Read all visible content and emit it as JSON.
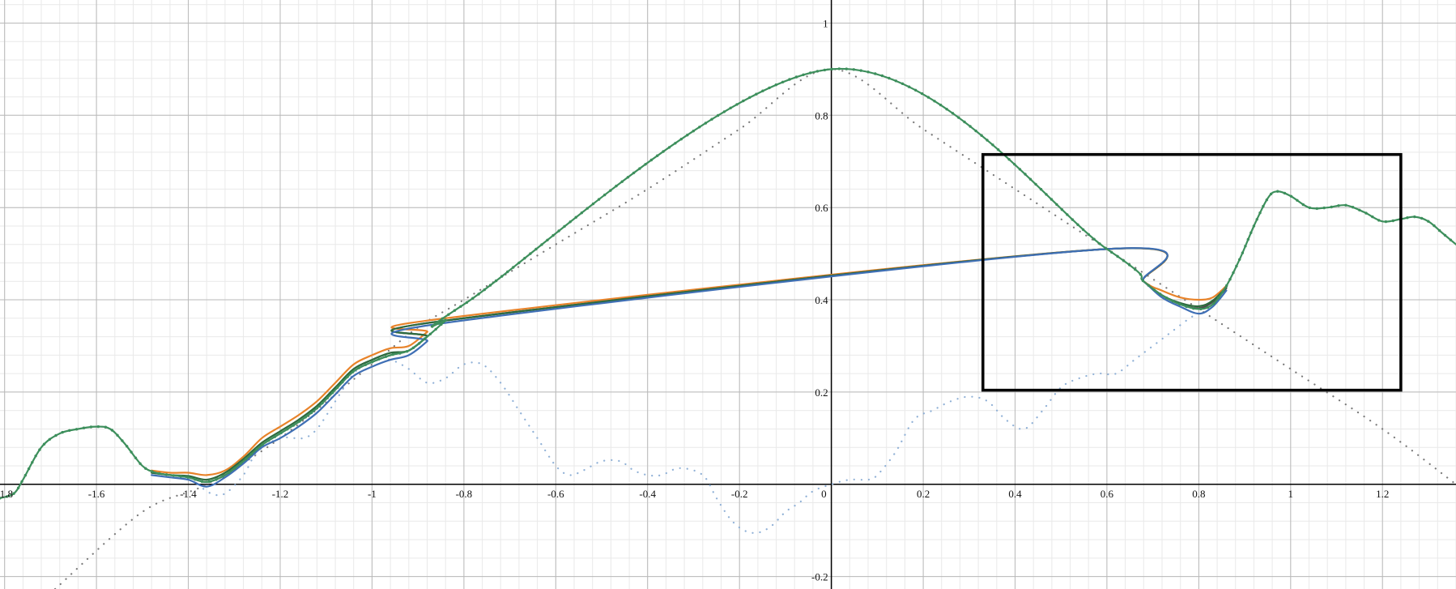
{
  "chart_data": {
    "type": "line",
    "title": "",
    "xlabel": "",
    "ylabel": "",
    "xlim": [
      -1.81,
      1.36
    ],
    "ylim": [
      -0.227,
      1.05
    ],
    "grid": true,
    "x_ticks": [
      -1.8,
      -1.6,
      -1.4,
      -1.2,
      -1,
      -0.8,
      -0.6,
      -0.4,
      -0.2,
      0,
      0.2,
      0.4,
      0.6,
      0.8,
      1,
      1.2
    ],
    "x_tick_labels": [
      "-1.8",
      "-1.6",
      "-1.4",
      "-1.2",
      "-1",
      "-0.8",
      "-0.6",
      "-0.4",
      "-0.2",
      "0",
      "0.2",
      "0.4",
      "0.6",
      "0.8",
      "1",
      "1.2"
    ],
    "y_ticks": [
      -0.2,
      0.2,
      0.4,
      0.6,
      0.8,
      1
    ],
    "y_tick_labels": [
      "-0.2",
      "0.2",
      "0.4",
      "0.6",
      "0.8",
      "1"
    ],
    "highlight_box": {
      "x": [
        0.33,
        1.24
      ],
      "y": [
        0.204,
        0.715
      ]
    },
    "series": [
      {
        "color": "#7a7a7a",
        "style": "dotted",
        "x": [
          -1.69,
          -1.5,
          -1.36,
          -1.2,
          -1.0,
          -0.9,
          -0.8,
          -0.6,
          -0.4,
          -0.2,
          0.0,
          0.2,
          0.4,
          0.6,
          0.8,
          1.0,
          1.2,
          1.36
        ],
        "y": [
          -0.227,
          -0.06,
          0.0,
          0.1,
          0.26,
          0.34,
          0.4,
          0.52,
          0.64,
          0.77,
          0.9,
          0.77,
          0.64,
          0.51,
          0.38,
          0.25,
          0.12,
          0.0
        ]
      },
      {
        "color": "#8fb0d6",
        "style": "dotted",
        "x": [
          -1.38,
          -1.35,
          -1.32,
          -1.28,
          -1.25,
          -1.2,
          -1.15,
          -1.12,
          -1.08,
          -1.04,
          -1.0,
          -0.96,
          -0.92,
          -0.88,
          -0.84,
          -0.8,
          -0.76,
          -0.72,
          -0.68,
          -0.64,
          -0.6,
          -0.57,
          -0.54,
          -0.5,
          -0.46,
          -0.43,
          -0.4,
          -0.37,
          -0.33,
          -0.28,
          -0.25,
          -0.22,
          -0.19,
          -0.16,
          -0.13,
          -0.1,
          -0.07,
          -0.04,
          0.0,
          0.04,
          0.08,
          0.1,
          0.14,
          0.18,
          0.22,
          0.26,
          0.3,
          0.34,
          0.38,
          0.42,
          0.46,
          0.5,
          0.54,
          0.58,
          0.62,
          0.66,
          0.7,
          0.74,
          0.78,
          0.8
        ],
        "y": [
          0.0,
          -0.02,
          -0.02,
          0.02,
          0.07,
          0.1,
          0.1,
          0.12,
          0.18,
          0.24,
          0.27,
          0.27,
          0.25,
          0.22,
          0.23,
          0.26,
          0.26,
          0.22,
          0.16,
          0.1,
          0.04,
          0.02,
          0.03,
          0.05,
          0.05,
          0.03,
          0.02,
          0.02,
          0.035,
          0.02,
          -0.03,
          -0.075,
          -0.1,
          -0.105,
          -0.09,
          -0.06,
          -0.04,
          -0.015,
          0.0,
          0.01,
          0.01,
          0.02,
          0.07,
          0.14,
          0.16,
          0.18,
          0.19,
          0.18,
          0.14,
          0.12,
          0.16,
          0.21,
          0.23,
          0.24,
          0.24,
          0.27,
          0.3,
          0.33,
          0.36,
          0.37
        ]
      },
      {
        "color": "#e8832a",
        "style": "solid",
        "x": [
          -1.48,
          -1.44,
          -1.4,
          -1.36,
          -1.32,
          -1.28,
          -1.24,
          -1.2,
          -1.16,
          -1.12,
          -1.08,
          -1.04,
          -1.0,
          -0.96,
          -0.92,
          -0.88,
          -0.84,
          0.6,
          0.68,
          0.72,
          0.76,
          0.8,
          0.83,
          0.86
        ],
        "y": [
          0.03,
          0.025,
          0.025,
          0.02,
          0.03,
          0.06,
          0.1,
          0.125,
          0.15,
          0.18,
          0.22,
          0.26,
          0.28,
          0.295,
          0.3,
          0.33,
          0.36,
          0.51,
          0.44,
          0.42,
          0.405,
          0.4,
          0.405,
          0.43
        ]
      },
      {
        "color": "#4b4b4b",
        "style": "solid",
        "x": [
          -1.48,
          -1.44,
          -1.4,
          -1.36,
          -1.32,
          -1.28,
          -1.24,
          -1.2,
          -1.16,
          -1.12,
          -1.08,
          -1.04,
          -1.0,
          -0.96,
          -0.92,
          -0.88,
          -0.84,
          0.6,
          0.68,
          0.72,
          0.76,
          0.8,
          0.83,
          0.86
        ],
        "y": [
          0.025,
          0.02,
          0.015,
          0.005,
          0.02,
          0.05,
          0.085,
          0.11,
          0.135,
          0.165,
          0.205,
          0.245,
          0.265,
          0.28,
          0.29,
          0.32,
          0.355,
          0.51,
          0.44,
          0.41,
          0.39,
          0.382,
          0.395,
          0.425
        ]
      },
      {
        "color": "#2d6a3e",
        "style": "solid",
        "x": [
          -1.48,
          -1.44,
          -1.4,
          -1.36,
          -1.32,
          -1.28,
          -1.24,
          -1.2,
          -1.16,
          -1.12,
          -1.08,
          -1.04,
          -1.0,
          -0.96,
          -0.92,
          -0.88,
          -0.84,
          0.6,
          0.68,
          0.72,
          0.76,
          0.8,
          0.83,
          0.86
        ],
        "y": [
          0.025,
          0.02,
          0.018,
          0.01,
          0.025,
          0.055,
          0.09,
          0.115,
          0.14,
          0.17,
          0.21,
          0.25,
          0.27,
          0.285,
          0.29,
          0.32,
          0.355,
          0.51,
          0.44,
          0.41,
          0.393,
          0.386,
          0.398,
          0.427
        ]
      },
      {
        "color": "#3f6fb5",
        "style": "solid",
        "x": [
          -1.48,
          -1.44,
          -1.4,
          -1.36,
          -1.32,
          -1.28,
          -1.24,
          -1.2,
          -1.16,
          -1.12,
          -1.08,
          -1.04,
          -1.0,
          -0.96,
          -0.92,
          -0.88,
          -0.84,
          0.6,
          0.68,
          0.72,
          0.76,
          0.8,
          0.83,
          0.86
        ],
        "y": [
          0.02,
          0.015,
          0.01,
          -0.005,
          0.015,
          0.045,
          0.08,
          0.1,
          0.125,
          0.155,
          0.195,
          0.235,
          0.255,
          0.27,
          0.28,
          0.31,
          0.35,
          0.51,
          0.44,
          0.405,
          0.385,
          0.37,
          0.385,
          0.42
        ]
      },
      {
        "color": "#3d8f5c",
        "style": "solid",
        "x": [
          -1.81,
          -1.78,
          -1.76,
          -1.72,
          -1.68,
          -1.64,
          -1.6,
          -1.57,
          -1.54,
          -1.5,
          -1.47,
          -1.44,
          -1.4,
          -1.36,
          -1.32,
          -1.28,
          -1.24,
          -1.2,
          -1.16,
          -1.12,
          -1.08,
          -1.04,
          -1.0,
          -0.96,
          -0.92,
          -0.88,
          -0.84,
          -0.8,
          0.0,
          0.6,
          0.68,
          0.72,
          0.76,
          0.8,
          0.83,
          0.86,
          0.89,
          0.92,
          0.95,
          0.97,
          1.0,
          1.04,
          1.08,
          1.12,
          1.16,
          1.2,
          1.24,
          1.27,
          1.3,
          1.33,
          1.36
        ],
        "y": [
          -0.03,
          -0.02,
          0.01,
          0.08,
          0.11,
          0.12,
          0.125,
          0.12,
          0.09,
          0.04,
          0.025,
          0.02,
          0.015,
          0.005,
          0.02,
          0.05,
          0.085,
          0.11,
          0.135,
          0.165,
          0.205,
          0.245,
          0.265,
          0.28,
          0.29,
          0.32,
          0.355,
          0.39,
          0.9,
          0.51,
          0.44,
          0.41,
          0.39,
          0.38,
          0.39,
          0.43,
          0.49,
          0.56,
          0.62,
          0.635,
          0.625,
          0.6,
          0.6,
          0.605,
          0.59,
          0.57,
          0.575,
          0.58,
          0.57,
          0.545,
          0.52
        ]
      }
    ]
  }
}
